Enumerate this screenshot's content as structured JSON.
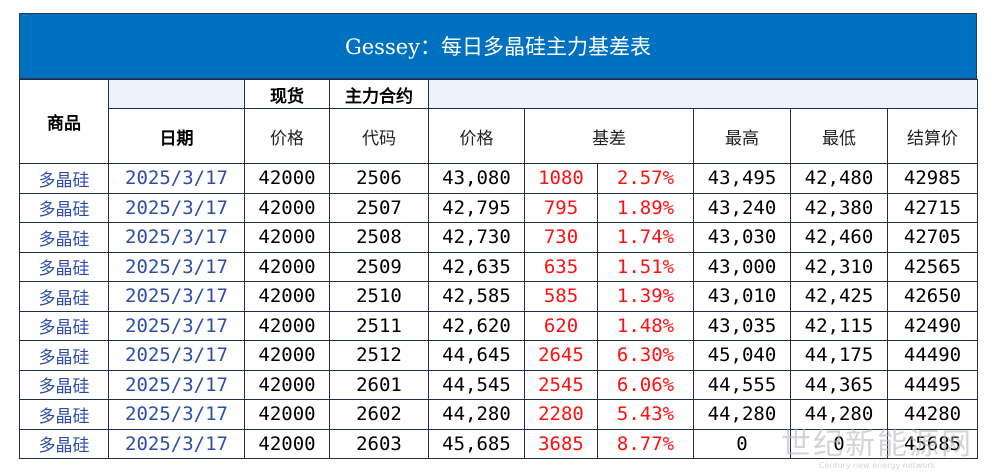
{
  "title": "Gessey：每日多晶硅主力基差表",
  "header": {
    "product": "商品",
    "date": "日期",
    "spot": "现货",
    "main_contract": "主力合约",
    "price": "价格",
    "code": "代码",
    "contract_price": "价格",
    "basis": "基差",
    "high": "最高",
    "low": "最低",
    "settle": "结算价"
  },
  "rows": [
    {
      "product": "多晶硅",
      "date": "2025/3/17",
      "spot": "42000",
      "code": "2506",
      "price": "43,080",
      "basis": "1080",
      "pct": "2.57%",
      "high": "43,495",
      "low": "42,480",
      "settle": "42985"
    },
    {
      "product": "多晶硅",
      "date": "2025/3/17",
      "spot": "42000",
      "code": "2507",
      "price": "42,795",
      "basis": "795",
      "pct": "1.89%",
      "high": "43,240",
      "low": "42,380",
      "settle": "42715"
    },
    {
      "product": "多晶硅",
      "date": "2025/3/17",
      "spot": "42000",
      "code": "2508",
      "price": "42,730",
      "basis": "730",
      "pct": "1.74%",
      "high": "43,030",
      "low": "42,460",
      "settle": "42705"
    },
    {
      "product": "多晶硅",
      "date": "2025/3/17",
      "spot": "42000",
      "code": "2509",
      "price": "42,635",
      "basis": "635",
      "pct": "1.51%",
      "high": "43,000",
      "low": "42,310",
      "settle": "42565"
    },
    {
      "product": "多晶硅",
      "date": "2025/3/17",
      "spot": "42000",
      "code": "2510",
      "price": "42,585",
      "basis": "585",
      "pct": "1.39%",
      "high": "43,010",
      "low": "42,425",
      "settle": "42650"
    },
    {
      "product": "多晶硅",
      "date": "2025/3/17",
      "spot": "42000",
      "code": "2511",
      "price": "42,620",
      "basis": "620",
      "pct": "1.48%",
      "high": "43,035",
      "low": "42,115",
      "settle": "42490"
    },
    {
      "product": "多晶硅",
      "date": "2025/3/17",
      "spot": "42000",
      "code": "2512",
      "price": "44,645",
      "basis": "2645",
      "pct": "6.30%",
      "high": "45,040",
      "low": "44,175",
      "settle": "44490"
    },
    {
      "product": "多晶硅",
      "date": "2025/3/17",
      "spot": "42000",
      "code": "2601",
      "price": "44,545",
      "basis": "2545",
      "pct": "6.06%",
      "high": "44,555",
      "low": "44,365",
      "settle": "44495"
    },
    {
      "product": "多晶硅",
      "date": "2025/3/17",
      "spot": "42000",
      "code": "2602",
      "price": "44,280",
      "basis": "2280",
      "pct": "5.43%",
      "high": "44,280",
      "low": "44,280",
      "settle": "44280"
    },
    {
      "product": "多晶硅",
      "date": "2025/3/17",
      "spot": "42000",
      "code": "2603",
      "price": "45,685",
      "basis": "3685",
      "pct": "8.77%",
      "high": "0",
      "low": "0",
      "settle": "45685"
    }
  ],
  "watermark": {
    "main": "世纪新能源网",
    "sub": "Century new energy network"
  },
  "colors": {
    "title_bg": "#0070c0",
    "title_text": "#ffffff",
    "product_date_text": "#2e4da8",
    "basis_text": "#ff1010",
    "header_row_bg": "#eef3fb"
  }
}
